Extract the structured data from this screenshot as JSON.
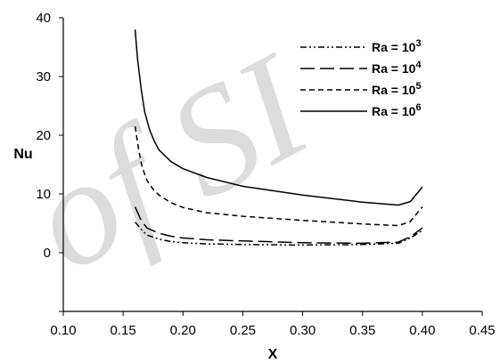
{
  "watermark": "of SI",
  "chart_data": {
    "type": "line",
    "xlabel": "X",
    "ylabel": "Nu",
    "xlim": [
      0.1,
      0.45
    ],
    "ylim": [
      -10,
      40
    ],
    "xticks": [
      "0.10",
      "0.15",
      "0.20",
      "0.25",
      "0.30",
      "0.35",
      "0.40",
      "0.45"
    ],
    "yticks": [
      "0",
      "10",
      "20",
      "30",
      "40"
    ],
    "grid": false,
    "legend_position": "top-right",
    "series": [
      {
        "name": "Ra = 10^3",
        "label_base": "Ra = 10",
        "label_exp": "3",
        "dash": "dash-dot-dot",
        "x": [
          0.16,
          0.165,
          0.17,
          0.18,
          0.19,
          0.2,
          0.22,
          0.25,
          0.3,
          0.35,
          0.38,
          0.39,
          0.4
        ],
        "y": [
          5.2,
          4.0,
          3.0,
          2.3,
          1.9,
          1.7,
          1.5,
          1.4,
          1.3,
          1.4,
          1.6,
          2.5,
          3.8
        ]
      },
      {
        "name": "Ra = 10^4",
        "label_base": "Ra = 10",
        "label_exp": "4",
        "dash": "long-dash",
        "x": [
          0.16,
          0.165,
          0.17,
          0.18,
          0.19,
          0.2,
          0.22,
          0.25,
          0.3,
          0.35,
          0.38,
          0.39,
          0.4
        ],
        "y": [
          7.8,
          5.5,
          4.2,
          3.3,
          2.8,
          2.5,
          2.2,
          2.0,
          1.7,
          1.6,
          1.8,
          2.7,
          4.2
        ]
      },
      {
        "name": "Ra = 10^5",
        "label_base": "Ra = 10",
        "label_exp": "5",
        "dash": "short-dash",
        "x": [
          0.16,
          0.163,
          0.166,
          0.17,
          0.175,
          0.18,
          0.19,
          0.2,
          0.22,
          0.25,
          0.3,
          0.35,
          0.38,
          0.39,
          0.4
        ],
        "y": [
          21.5,
          17.5,
          14.5,
          12.3,
          10.8,
          9.8,
          8.5,
          7.7,
          6.8,
          6.2,
          5.5,
          4.9,
          4.6,
          5.3,
          7.8
        ]
      },
      {
        "name": "Ra = 10^6",
        "label_base": "Ra = 10",
        "label_exp": "6",
        "dash": "solid",
        "x": [
          0.16,
          0.162,
          0.165,
          0.168,
          0.172,
          0.176,
          0.18,
          0.19,
          0.2,
          0.22,
          0.25,
          0.3,
          0.35,
          0.38,
          0.39,
          0.4
        ],
        "y": [
          38.0,
          33.0,
          28.0,
          24.0,
          21.0,
          19.0,
          17.5,
          15.5,
          14.3,
          12.8,
          11.3,
          9.8,
          8.6,
          8.1,
          8.7,
          11.2
        ]
      }
    ]
  }
}
